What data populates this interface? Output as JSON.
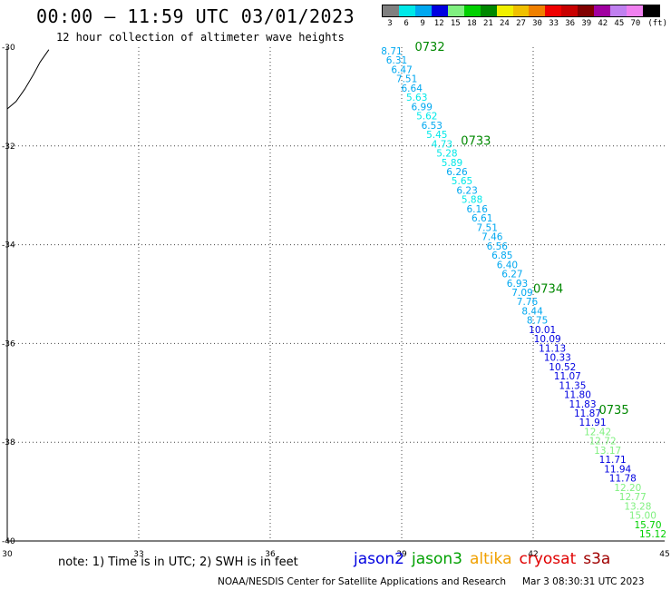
{
  "header": {
    "title": "00:00 – 11:59 UTC 03/01/2023",
    "subtitle": "12 hour collection of altimeter wave heights"
  },
  "legend": {
    "unit": "(ft)",
    "bins": [
      {
        "label": "3",
        "color": "#808080"
      },
      {
        "label": "6",
        "color": "#00e8e8"
      },
      {
        "label": "9",
        "color": "#00a8f0"
      },
      {
        "label": "12",
        "color": "#0000e0"
      },
      {
        "label": "15",
        "color": "#80f080"
      },
      {
        "label": "18",
        "color": "#00d000"
      },
      {
        "label": "21",
        "color": "#008800"
      },
      {
        "label": "24",
        "color": "#f0f000"
      },
      {
        "label": "27",
        "color": "#f0c000"
      },
      {
        "label": "30",
        "color": "#f08000"
      },
      {
        "label": "33",
        "color": "#f00000"
      },
      {
        "label": "36",
        "color": "#c80000"
      },
      {
        "label": "39",
        "color": "#800000"
      },
      {
        "label": "42",
        "color": "#a000a0"
      },
      {
        "label": "45",
        "color": "#c080f0"
      },
      {
        "label": "70",
        "color": "#f080f0"
      },
      {
        "label": "",
        "color": "#000000"
      }
    ]
  },
  "axes": {
    "lon_ticks": [
      30,
      33,
      36,
      39,
      42,
      45
    ],
    "lat_ticks": [
      -30,
      -32,
      -34,
      -36,
      -38,
      -40
    ],
    "lon_range": [
      30,
      45
    ],
    "lat_range": [
      -30,
      -40
    ]
  },
  "coastline": [
    [
      30.0,
      -31.25
    ],
    [
      30.2,
      -31.1
    ],
    [
      30.4,
      -30.85
    ],
    [
      30.6,
      -30.55
    ],
    [
      30.75,
      -30.3
    ],
    [
      30.95,
      -30.05
    ]
  ],
  "track": {
    "time_labels": [
      {
        "text": "0732",
        "lon": 39.3,
        "lat": -30.0
      },
      {
        "text": "0733",
        "lon": 40.35,
        "lat": -31.9
      },
      {
        "text": "0734",
        "lon": 42.0,
        "lat": -34.9
      },
      {
        "text": "0735",
        "lon": 43.5,
        "lat": -37.35
      }
    ],
    "points": [
      {
        "v": "8.71",
        "color": "#00a8f0"
      },
      {
        "v": "6.31",
        "color": "#00a8f0"
      },
      {
        "v": "6.47",
        "color": "#00a8f0"
      },
      {
        "v": "7.51",
        "color": "#00a8f0"
      },
      {
        "v": "6.64",
        "color": "#00a8f0"
      },
      {
        "v": "5.63",
        "color": "#00e8e8"
      },
      {
        "v": "6.99",
        "color": "#00a8f0"
      },
      {
        "v": "5.62",
        "color": "#00e8e8"
      },
      {
        "v": "6.53",
        "color": "#00a8f0"
      },
      {
        "v": "5.45",
        "color": "#00e8e8"
      },
      {
        "v": "4.73",
        "color": "#00e8e8"
      },
      {
        "v": "5.28",
        "color": "#00e8e8"
      },
      {
        "v": "5.89",
        "color": "#00e8e8"
      },
      {
        "v": "6.26",
        "color": "#00a8f0"
      },
      {
        "v": "5.65",
        "color": "#00e8e8"
      },
      {
        "v": "6.23",
        "color": "#00a8f0"
      },
      {
        "v": "5.88",
        "color": "#00e8e8"
      },
      {
        "v": "6.16",
        "color": "#00a8f0"
      },
      {
        "v": "6.61",
        "color": "#00a8f0"
      },
      {
        "v": "7.51",
        "color": "#00a8f0"
      },
      {
        "v": "7.46",
        "color": "#00a8f0"
      },
      {
        "v": "6.56",
        "color": "#00a8f0"
      },
      {
        "v": "6.85",
        "color": "#00a8f0"
      },
      {
        "v": "6.40",
        "color": "#00a8f0"
      },
      {
        "v": "6.27",
        "color": "#00a8f0"
      },
      {
        "v": "6.93",
        "color": "#00a8f0"
      },
      {
        "v": "7.09",
        "color": "#00a8f0"
      },
      {
        "v": "7.76",
        "color": "#00a8f0"
      },
      {
        "v": "8.44",
        "color": "#00a8f0"
      },
      {
        "v": "8.75",
        "color": "#00a8f0"
      },
      {
        "v": "10.01",
        "color": "#0000e0"
      },
      {
        "v": "10.09",
        "color": "#0000e0"
      },
      {
        "v": "11.13",
        "color": "#0000e0"
      },
      {
        "v": "10.33",
        "color": "#0000e0"
      },
      {
        "v": "10.52",
        "color": "#0000e0"
      },
      {
        "v": "11.07",
        "color": "#0000e0"
      },
      {
        "v": "11.35",
        "color": "#0000e0"
      },
      {
        "v": "11.80",
        "color": "#0000e0"
      },
      {
        "v": "11.83",
        "color": "#0000e0"
      },
      {
        "v": "11.87",
        "color": "#0000e0"
      },
      {
        "v": "11.91",
        "color": "#0000e0"
      },
      {
        "v": "12.42",
        "color": "#80f080"
      },
      {
        "v": "12.72",
        "color": "#80f080"
      },
      {
        "v": "13.17",
        "color": "#80f080"
      },
      {
        "v": "11.71",
        "color": "#0000e0"
      },
      {
        "v": "11.94",
        "color": "#0000e0"
      },
      {
        "v": "11.78",
        "color": "#0000e0"
      },
      {
        "v": "12.20",
        "color": "#80f080"
      },
      {
        "v": "12.77",
        "color": "#80f080"
      },
      {
        "v": "13.28",
        "color": "#80f080"
      },
      {
        "v": "15.00",
        "color": "#80f080"
      },
      {
        "v": "15.70",
        "color": "#00d000"
      },
      {
        "v": "15.12",
        "color": "#00d000"
      }
    ]
  },
  "footer": {
    "note": "note: 1) Time is in UTC; 2) SWH is in feet",
    "satellites": [
      {
        "name": "jason2",
        "color": "#0000e0"
      },
      {
        "name": "jason3",
        "color": "#00a000"
      },
      {
        "name": "altika",
        "color": "#f0a000"
      },
      {
        "name": "cryosat",
        "color": "#e00000"
      },
      {
        "name": "s3a",
        "color": "#a00000"
      }
    ],
    "credit": "NOAA/NESDIS Center for Satellite Applications and Research",
    "timestamp": "Mar  3 08:30:31 UTC 2023"
  }
}
